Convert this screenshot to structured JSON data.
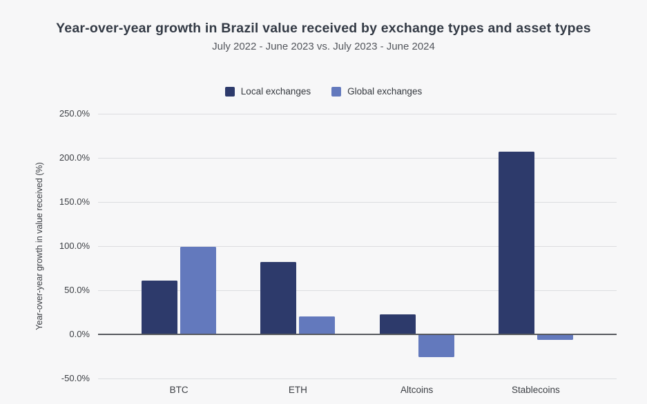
{
  "title": "Year-over-year growth in Brazil value received by exchange types and asset types",
  "subtitle": "July 2022 - June 2023 vs. July 2023 - June 2024",
  "legend": [
    {
      "label": "Local exchanges",
      "color": "#2d3a6b"
    },
    {
      "label": "Global exchanges",
      "color": "#6379bd"
    }
  ],
  "chart_data": {
    "type": "bar",
    "title": "Year-over-year growth in Brazil value received by exchange types and asset types",
    "subtitle": "July 2022 - June 2023 vs. July 2023 - June 2024",
    "categories": [
      "BTC",
      "ETH",
      "Altcoins",
      "Stablecoins"
    ],
    "series": [
      {
        "name": "Local exchanges",
        "color": "#2d3a6b",
        "values": [
          61,
          82,
          23,
          207
        ]
      },
      {
        "name": "Global exchanges",
        "color": "#6379bd",
        "values": [
          99,
          20,
          -26,
          -6
        ]
      }
    ],
    "xlabel": "",
    "ylabel": "Year-over-year growth in value received (%)",
    "ylim": [
      -50,
      250
    ],
    "grid": true,
    "legend_position": "top",
    "y_ticks": [
      {
        "value": 250,
        "label": "250.0%"
      },
      {
        "value": 200,
        "label": "200.0%"
      },
      {
        "value": 150,
        "label": "150.0%"
      },
      {
        "value": 100,
        "label": "100.0%"
      },
      {
        "value": 50,
        "label": "50.0%"
      },
      {
        "value": 0,
        "label": "0.0%"
      },
      {
        "value": -50,
        "label": "-50.0%"
      }
    ]
  }
}
